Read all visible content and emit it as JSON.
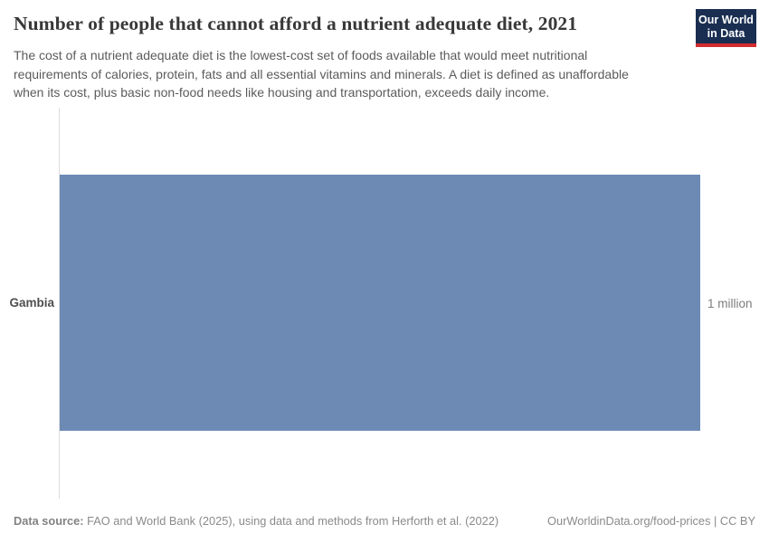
{
  "header": {
    "title": "Number of people that cannot afford a nutrient adequate diet, 2021",
    "subtitle_lines": [
      "The cost of a nutrient adequate diet is the lowest-cost set of foods available that would meet nutritional",
      "requirements of calories, protein, fats and all essential vitamins and minerals. A diet is defined as unaffordable",
      "when its cost, plus basic non-food needs like housing and transportation, exceeds daily income."
    ],
    "logo": {
      "line1": "Our World",
      "line2": "in Data"
    }
  },
  "chart_data": {
    "type": "bar",
    "orientation": "horizontal",
    "title": "Number of people that cannot afford a nutrient adequate diet, 2021",
    "year": "2021",
    "categories": [
      "Gambia"
    ],
    "values": [
      1000000
    ],
    "value_labels": [
      "1 million"
    ],
    "xlabel": "",
    "ylabel": "",
    "xlim": [
      0,
      1000000
    ],
    "grid": false,
    "legend": false,
    "bar_color": "#6d8ab4"
  },
  "chart": {
    "entity_label": "Gambia",
    "value_label": "1 million"
  },
  "footer": {
    "datasource_label": "Data source:",
    "datasource_text": " FAO and World Bank (2025), using data and methods from Herforth et al. (2022)",
    "link_text": "OurWorldinData.org/food-prices | CC BY"
  },
  "colors": {
    "bar": "#6d8ab4",
    "title": "#383838",
    "subtitle": "#5b5b5b",
    "logo_navy": "#1a2e51",
    "logo_red": "#d42b2f",
    "axis_line": "#dcdcdc",
    "footer_text": "#8a8a8a"
  }
}
